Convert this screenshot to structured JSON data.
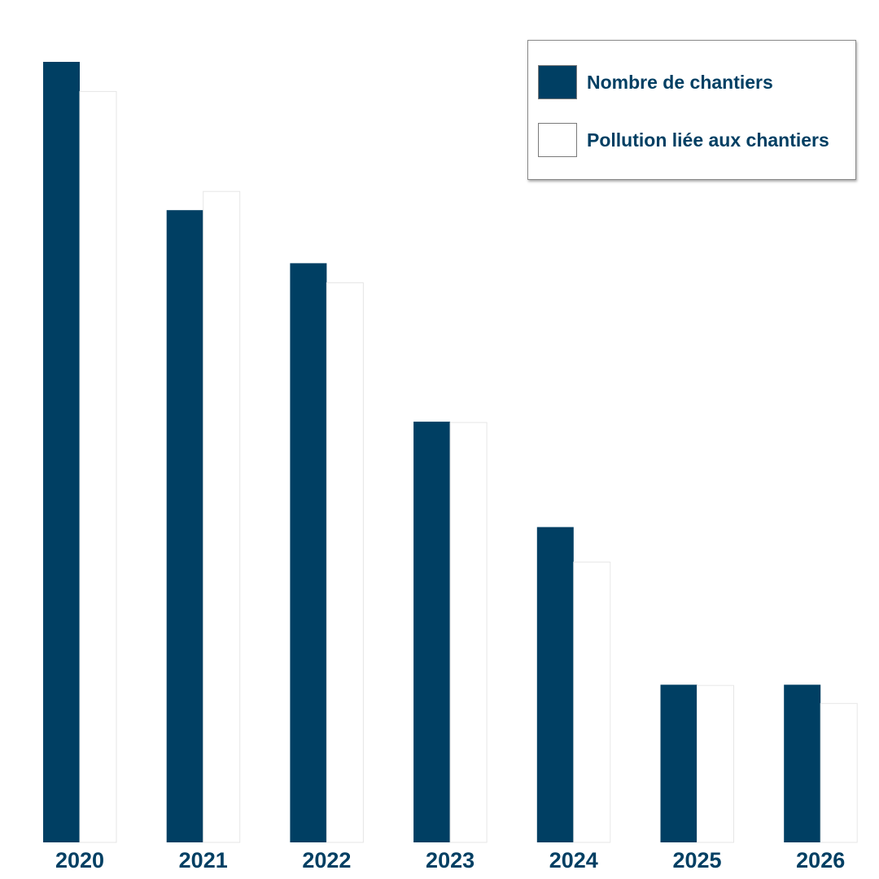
{
  "chart_data": {
    "type": "bar",
    "categories": [
      "2020",
      "2021",
      "2022",
      "2023",
      "2024",
      "2025",
      "2026"
    ],
    "series": [
      {
        "name": "Nombre de chantiers",
        "color": "#003f63",
        "values": [
          100,
          81,
          74.2,
          53.9,
          40.4,
          20.2,
          20.2
        ]
      },
      {
        "name": "Pollution liée aux chantiers",
        "color": "#ffffff",
        "values": [
          96.2,
          83.4,
          71.7,
          53.8,
          35.9,
          20.1,
          17.8
        ]
      }
    ],
    "title": "",
    "xlabel": "",
    "ylabel": "",
    "ylim": [
      0,
      100
    ],
    "grid": false,
    "legend": "top-right",
    "text_color": "#003f63"
  }
}
